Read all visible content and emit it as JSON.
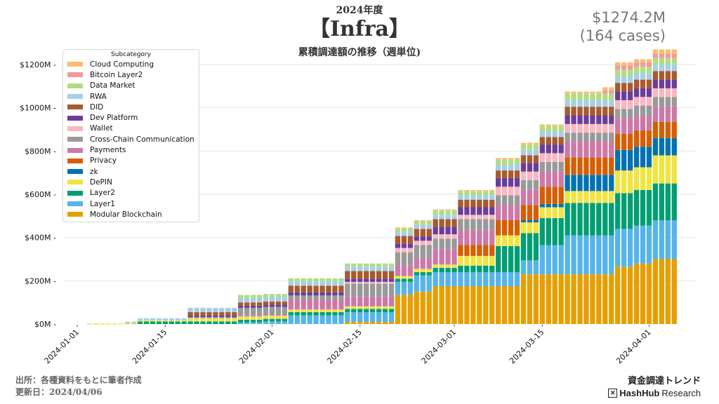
{
  "header": {
    "year_label": "2024年度",
    "title": "【Infra】",
    "subtitle": "累積調達額の推移（週単位)",
    "total_amount": "$1274.2M",
    "total_cases": "(164 cases)"
  },
  "footer": {
    "source": "出所：各種資料をもとに筆者作成",
    "updated": "更新日：2024/04/06",
    "brand_jp": "資金調達トレンド",
    "brand_logo_bold": "HashHub",
    "brand_logo_light": "Research",
    "brand_logo_mark": "✕"
  },
  "chart_data": {
    "type": "bar",
    "stacked": true,
    "title": "累積調達額の推移（週単位)",
    "xlabel": "",
    "ylabel": "",
    "ylim": [
      0,
      1270
    ],
    "yticks": [
      0,
      200,
      400,
      600,
      800,
      1000,
      1200
    ],
    "ytick_labels": [
      "$0M",
      "$200M",
      "$400M",
      "$600M",
      "$800M",
      "$1000M",
      "$1200M"
    ],
    "xticks": [
      "2024-01-01",
      "2024-01-15",
      "2024-02-01",
      "2024-02-15",
      "2024-03-01",
      "2024-03-15",
      "2024-04-01"
    ],
    "x_start": "2024-01-03",
    "x_end": "2024-04-05",
    "grid": "horizontal",
    "legend": {
      "title": "Subcategory",
      "placement": "top-left"
    },
    "series_order_bottom_to_top": [
      "Modular Blockchain",
      "Layer1",
      "Layer2",
      "DePIN",
      "zk",
      "Privacy",
      "Payments",
      "Cross-Chain Communication",
      "Wallet",
      "Dev Platform",
      "DID",
      "RWA",
      "Data Market",
      "Bitcoin Layer2",
      "Cloud Computing"
    ],
    "legend_order": [
      "Cloud Computing",
      "Bitcoin Layer2",
      "Data Market",
      "RWA",
      "DID",
      "Dev Platform",
      "Wallet",
      "Cross-Chain Communication",
      "Payments",
      "Privacy",
      "zk",
      "DePIN",
      "Layer2",
      "Layer1",
      "Modular Blockchain"
    ],
    "colors": {
      "Cloud Computing": "#f7bd72",
      "Bitcoin Layer2": "#f59a98",
      "Data Market": "#b1dc87",
      "RWA": "#a6cfe5",
      "DID": "#a85a2c",
      "Dev Platform": "#6a3d9a",
      "Wallet": "#fbb6c1",
      "Cross-Chain Communication": "#999999",
      "Payments": "#cc79a7",
      "Privacy": "#d55e00",
      "zk": "#0072b2",
      "DePIN": "#f0e442",
      "Layer2": "#009e73",
      "Layer1": "#56b4e9",
      "Modular Blockchain": "#e69f00"
    },
    "steps_note": "cumulative $M per category; each entry [date, value] means value from that date onward",
    "steps": {
      "Modular Blockchain": [
        [
          "2024-01-03",
          0
        ],
        [
          "2024-02-13",
          10
        ],
        [
          "2024-02-21",
          135
        ],
        [
          "2024-02-24",
          150
        ],
        [
          "2024-02-27",
          175
        ],
        [
          "2024-03-12",
          230
        ],
        [
          "2024-03-27",
          265
        ],
        [
          "2024-03-30",
          280
        ],
        [
          "2024-04-02",
          300
        ]
      ],
      "Layer1": [
        [
          "2024-01-03",
          0
        ],
        [
          "2024-01-27",
          8
        ],
        [
          "2024-01-31",
          12
        ],
        [
          "2024-02-04",
          40
        ],
        [
          "2024-02-13",
          45
        ],
        [
          "2024-02-21",
          60
        ],
        [
          "2024-02-24",
          75
        ],
        [
          "2024-02-27",
          65
        ],
        [
          "2024-03-12",
          65
        ],
        [
          "2024-03-15",
          135
        ],
        [
          "2024-03-19",
          180
        ],
        [
          "2024-03-27",
          175
        ],
        [
          "2024-04-02",
          180
        ]
      ],
      "Layer2": [
        [
          "2024-01-03",
          0
        ],
        [
          "2024-01-11",
          12
        ],
        [
          "2024-02-04",
          15
        ],
        [
          "2024-02-13",
          15
        ],
        [
          "2024-02-24",
          15
        ],
        [
          "2024-02-27",
          20
        ],
        [
          "2024-03-02",
          30
        ],
        [
          "2024-03-08",
          120
        ],
        [
          "2024-03-12",
          125
        ],
        [
          "2024-03-15",
          125
        ],
        [
          "2024-03-19",
          150
        ],
        [
          "2024-03-27",
          165
        ],
        [
          "2024-04-02",
          170
        ]
      ],
      "DePIN": [
        [
          "2024-01-03",
          3
        ],
        [
          "2024-01-11",
          5
        ],
        [
          "2024-01-19",
          15
        ],
        [
          "2024-02-04",
          12
        ],
        [
          "2024-02-13",
          12
        ],
        [
          "2024-02-24",
          15
        ],
        [
          "2024-02-27",
          15
        ],
        [
          "2024-03-02",
          45
        ],
        [
          "2024-03-08",
          50
        ],
        [
          "2024-03-12",
          50
        ],
        [
          "2024-03-15",
          50
        ],
        [
          "2024-03-19",
          55
        ],
        [
          "2024-03-27",
          105
        ],
        [
          "2024-04-02",
          130
        ]
      ],
      "zk": [
        [
          "2024-01-03",
          0
        ],
        [
          "2024-03-12",
          10
        ],
        [
          "2024-03-15",
          15
        ],
        [
          "2024-03-19",
          75
        ],
        [
          "2024-03-27",
          95
        ],
        [
          "2024-04-02",
          80
        ]
      ],
      "Privacy": [
        [
          "2024-01-03",
          0
        ],
        [
          "2024-03-02",
          50
        ],
        [
          "2024-03-08",
          70
        ],
        [
          "2024-03-15",
          80
        ],
        [
          "2024-03-19",
          80
        ],
        [
          "2024-03-27",
          75
        ],
        [
          "2024-04-02",
          75
        ]
      ],
      "Payments": [
        [
          "2024-01-03",
          0
        ],
        [
          "2024-01-27",
          5
        ],
        [
          "2024-02-04",
          45
        ],
        [
          "2024-02-13",
          45
        ],
        [
          "2024-02-21",
          50
        ],
        [
          "2024-02-27",
          70
        ],
        [
          "2024-03-08",
          70
        ],
        [
          "2024-03-19",
          75
        ],
        [
          "2024-03-27",
          70
        ]
      ],
      "Cross-Chain Communication": [
        [
          "2024-01-03",
          0
        ],
        [
          "2024-01-19",
          5
        ],
        [
          "2024-01-27",
          35
        ],
        [
          "2024-02-04",
          20
        ],
        [
          "2024-02-13",
          60
        ],
        [
          "2024-02-21",
          60
        ],
        [
          "2024-02-27",
          50
        ],
        [
          "2024-03-08",
          45
        ],
        [
          "2024-03-19",
          40
        ],
        [
          "2024-03-27",
          45
        ]
      ],
      "Wallet": [
        [
          "2024-01-03",
          0
        ],
        [
          "2024-02-13",
          8
        ],
        [
          "2024-02-21",
          20
        ],
        [
          "2024-02-27",
          20
        ],
        [
          "2024-03-08",
          40
        ],
        [
          "2024-03-19",
          40
        ],
        [
          "2024-03-27",
          40
        ]
      ],
      "Dev Platform": [
        [
          "2024-01-03",
          0
        ],
        [
          "2024-01-19",
          8
        ],
        [
          "2024-01-27",
          10
        ],
        [
          "2024-02-04",
          15
        ],
        [
          "2024-02-13",
          15
        ],
        [
          "2024-02-21",
          20
        ],
        [
          "2024-02-27",
          35
        ],
        [
          "2024-03-08",
          40
        ],
        [
          "2024-03-19",
          40
        ],
        [
          "2024-03-27",
          40
        ]
      ],
      "DID": [
        [
          "2024-01-03",
          0
        ],
        [
          "2024-01-19",
          15
        ],
        [
          "2024-02-04",
          30
        ],
        [
          "2024-02-13",
          35
        ],
        [
          "2024-02-27",
          35
        ],
        [
          "2024-03-08",
          35
        ],
        [
          "2024-03-19",
          40
        ],
        [
          "2024-03-27",
          40
        ]
      ],
      "RWA": [
        [
          "2024-01-03",
          0
        ],
        [
          "2024-01-09",
          8
        ],
        [
          "2024-01-11",
          10
        ],
        [
          "2024-01-19",
          20
        ],
        [
          "2024-02-13",
          20
        ],
        [
          "2024-02-27",
          20
        ],
        [
          "2024-03-08",
          25
        ],
        [
          "2024-03-19",
          30
        ],
        [
          "2024-03-27",
          30
        ]
      ],
      "Data Market": [
        [
          "2024-01-03",
          0
        ],
        [
          "2024-01-27",
          15
        ],
        [
          "2024-02-13",
          15
        ],
        [
          "2024-02-27",
          20
        ],
        [
          "2024-03-08",
          25
        ],
        [
          "2024-03-19",
          30
        ],
        [
          "2024-03-27",
          30
        ]
      ],
      "Bitcoin Layer2": [
        [
          "2024-01-03",
          0
        ],
        [
          "2024-03-25",
          15
        ],
        [
          "2024-03-27",
          20
        ]
      ],
      "Cloud Computing": [
        [
          "2024-01-03",
          0
        ],
        [
          "2024-02-21",
          5
        ],
        [
          "2024-03-08",
          8
        ],
        [
          "2024-03-19",
          10
        ],
        [
          "2024-03-25",
          15
        ],
        [
          "2024-04-02",
          20
        ]
      ]
    }
  }
}
